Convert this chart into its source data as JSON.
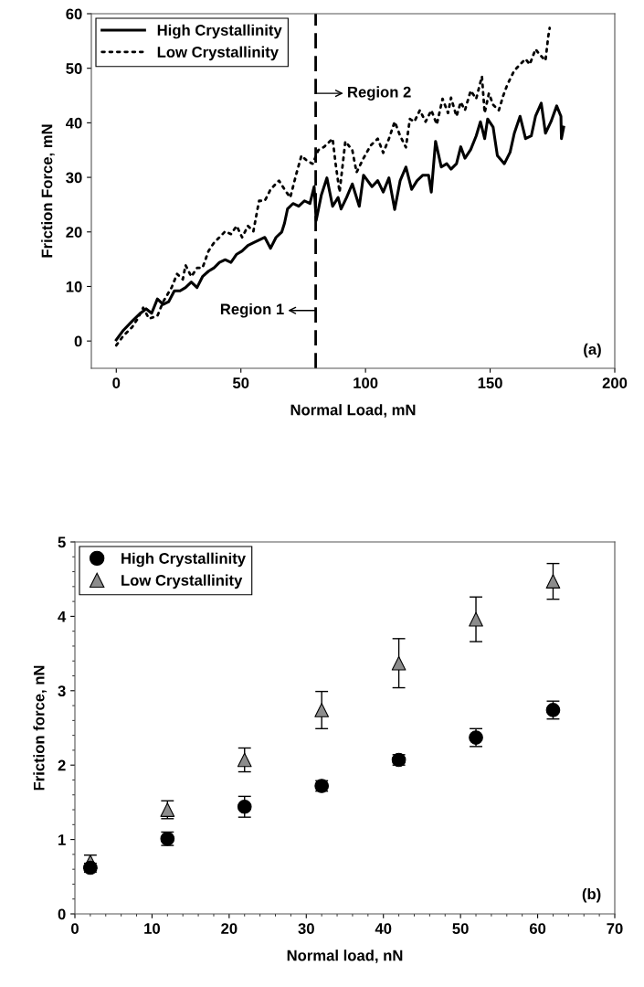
{
  "chart_data": [
    {
      "type": "line",
      "xlabel": "Normal Load, mN",
      "ylabel": "Friction Force, mN",
      "xlim": [
        -10,
        200
      ],
      "ylim": [
        -5,
        60
      ],
      "xticks": [
        0,
        50,
        100,
        150,
        200
      ],
      "yticks": [
        0,
        10,
        20,
        30,
        40,
        50,
        60
      ],
      "legend": "top left",
      "grid": false,
      "marker": "none",
      "series": [
        {
          "name": "High Crystallinity",
          "color": "#000000",
          "line_style": "solid",
          "x": [
            0,
            2.9,
            6.3,
            9.7,
            12,
            14.2,
            16.5,
            18.8,
            21,
            23.3,
            25.6,
            27.8,
            30.1,
            32.4,
            34.6,
            37,
            39.2,
            41.4,
            43.7,
            46,
            48.3,
            50.5,
            52.8,
            55,
            57.3,
            59.6,
            61.9,
            64.1,
            66.4,
            67.5,
            68.7,
            70.9,
            73.2,
            75.5,
            77.7,
            79.4,
            80.2,
            82.3,
            84.5,
            86.8,
            89,
            90.2,
            92.4,
            94.7,
            97.5,
            99.2,
            102.6,
            104.9,
            107.1,
            109.4,
            111.7,
            113.9,
            116.2,
            118.5,
            120.7,
            123,
            125.3,
            126.4,
            128.1,
            130.4,
            132.6,
            134.3,
            136.5,
            138.2,
            139.9,
            142.2,
            144.4,
            146.1,
            147.8,
            149,
            151.2,
            152.9,
            155.7,
            158,
            159.7,
            162,
            164.2,
            166.5,
            168.2,
            170.5,
            172.2,
            174.4,
            176.7,
            178.4,
            178.6,
            179.5
          ],
          "values": [
            0.2,
            2,
            3.6,
            5.1,
            5.9,
            5.1,
            7.7,
            6.7,
            7.2,
            9.2,
            9.2,
            9.8,
            10.8,
            9.8,
            11.8,
            12.8,
            13.4,
            14.4,
            14.9,
            14.4,
            15.9,
            16.5,
            17.5,
            18,
            18.5,
            19,
            17,
            19,
            20,
            21.6,
            24.2,
            25.2,
            24.7,
            25.7,
            25.2,
            28.3,
            22.1,
            26.8,
            29.9,
            24.7,
            26.3,
            24.2,
            26.3,
            28.8,
            24.7,
            30.4,
            28.3,
            29.4,
            27.3,
            29.9,
            24.1,
            29.4,
            31.9,
            27.8,
            29.4,
            30.4,
            30.4,
            27.3,
            36.6,
            31.9,
            32.5,
            31.5,
            32.5,
            35.6,
            33.5,
            35.1,
            37.6,
            40.2,
            37.1,
            40.7,
            39.2,
            34,
            32.5,
            34.6,
            38.1,
            41.2,
            37.1,
            37.6,
            41.2,
            43.6,
            38.1,
            40.2,
            43.1,
            41.2,
            37.1,
            39.2
          ]
        },
        {
          "name": "Low Crystallinity",
          "color": "#000000",
          "line_style": "dotted",
          "x": [
            0,
            2.9,
            6.3,
            8.6,
            10.8,
            13.1,
            16.5,
            18.8,
            22.2,
            24.4,
            26.7,
            27.8,
            30.1,
            32.4,
            34.6,
            37,
            39.2,
            41.4,
            43.7,
            46,
            48.3,
            50.5,
            52.8,
            55,
            57.3,
            59.6,
            61.9,
            65.3,
            67.5,
            69.8,
            72.1,
            74.3,
            76.6,
            78.8,
            81.1,
            83.4,
            86.8,
            88,
            89.6,
            91.9,
            94.7,
            96.4,
            99.2,
            102,
            104.9,
            107.1,
            109.4,
            111.7,
            113.9,
            116.2,
            117.8,
            119.6,
            121.8,
            124.1,
            126.4,
            128.6,
            130.9,
            133.1,
            134.3,
            136.5,
            138.2,
            139.9,
            142.2,
            144.4,
            146.7,
            147.8,
            149.5,
            151.2,
            153.5,
            155.2,
            156.9,
            159.7,
            162,
            164.2,
            165.9,
            168.2,
            169.9,
            172.2,
            173.3,
            173.9
          ],
          "values": [
            -0.8,
            1,
            2.5,
            4.1,
            6.1,
            4.1,
            4.6,
            7.2,
            9.8,
            12.3,
            11.3,
            13.9,
            11.8,
            13.4,
            13.4,
            16.5,
            18,
            19,
            20.1,
            19.6,
            21.1,
            19,
            21.1,
            20.1,
            25.7,
            25.7,
            27.8,
            29.4,
            27.8,
            26.3,
            30.4,
            34,
            33,
            32.5,
            35,
            35.6,
            37.1,
            32.5,
            27.3,
            36.6,
            35,
            30.9,
            33.5,
            35.8,
            37.1,
            34.5,
            37.1,
            40.2,
            37.6,
            35.5,
            40.7,
            40.2,
            42.3,
            40.2,
            42.3,
            39.7,
            44.4,
            41.8,
            44.6,
            41.2,
            43.8,
            42.3,
            45.9,
            44.4,
            48.5,
            41.8,
            45.4,
            43.3,
            42.3,
            44.9,
            47,
            49.6,
            50.7,
            51.7,
            50.7,
            53.5,
            52.5,
            51.4,
            55.8,
            57.4
          ]
        }
      ],
      "ref_lines": [
        {
          "axis": "x",
          "value": 80,
          "color": "#000000",
          "line_style": "dashed"
        }
      ],
      "annotations": [
        {
          "text": "Region 1",
          "x": 80,
          "y": 5.6
        },
        {
          "text": "Region 2",
          "x": 80,
          "y": 45.4
        },
        "(a)"
      ]
    },
    {
      "type": "scatter",
      "xlabel": "Normal load, nN",
      "ylabel": "Friction force, nN",
      "xlim": [
        0,
        70
      ],
      "ylim": [
        0,
        5
      ],
      "xticks": [
        0,
        10,
        20,
        30,
        40,
        50,
        60,
        70
      ],
      "yticks": [
        0,
        1,
        2,
        3,
        4,
        5
      ],
      "legend": "top left",
      "grid": false,
      "x": [
        2,
        12,
        22,
        32,
        42,
        52,
        62
      ],
      "series": [
        {
          "name": "High Crystallinity",
          "color": "#000000",
          "marker": "circle",
          "values": [
            0.62,
            1.01,
            1.44,
            1.72,
            2.07,
            2.37,
            2.74
          ],
          "errors": [
            0.06,
            0.09,
            0.14,
            0.07,
            0.07,
            0.12,
            0.12
          ]
        },
        {
          "name": "Low Crystallinity",
          "color": "#8c8c8c",
          "marker": "triangle",
          "values": [
            0.7,
            1.4,
            2.07,
            2.74,
            3.37,
            3.96,
            4.47
          ],
          "errors": [
            0.09,
            0.12,
            0.16,
            0.25,
            0.33,
            0.3,
            0.24
          ]
        }
      ],
      "annotations": [
        "(b)"
      ]
    }
  ]
}
